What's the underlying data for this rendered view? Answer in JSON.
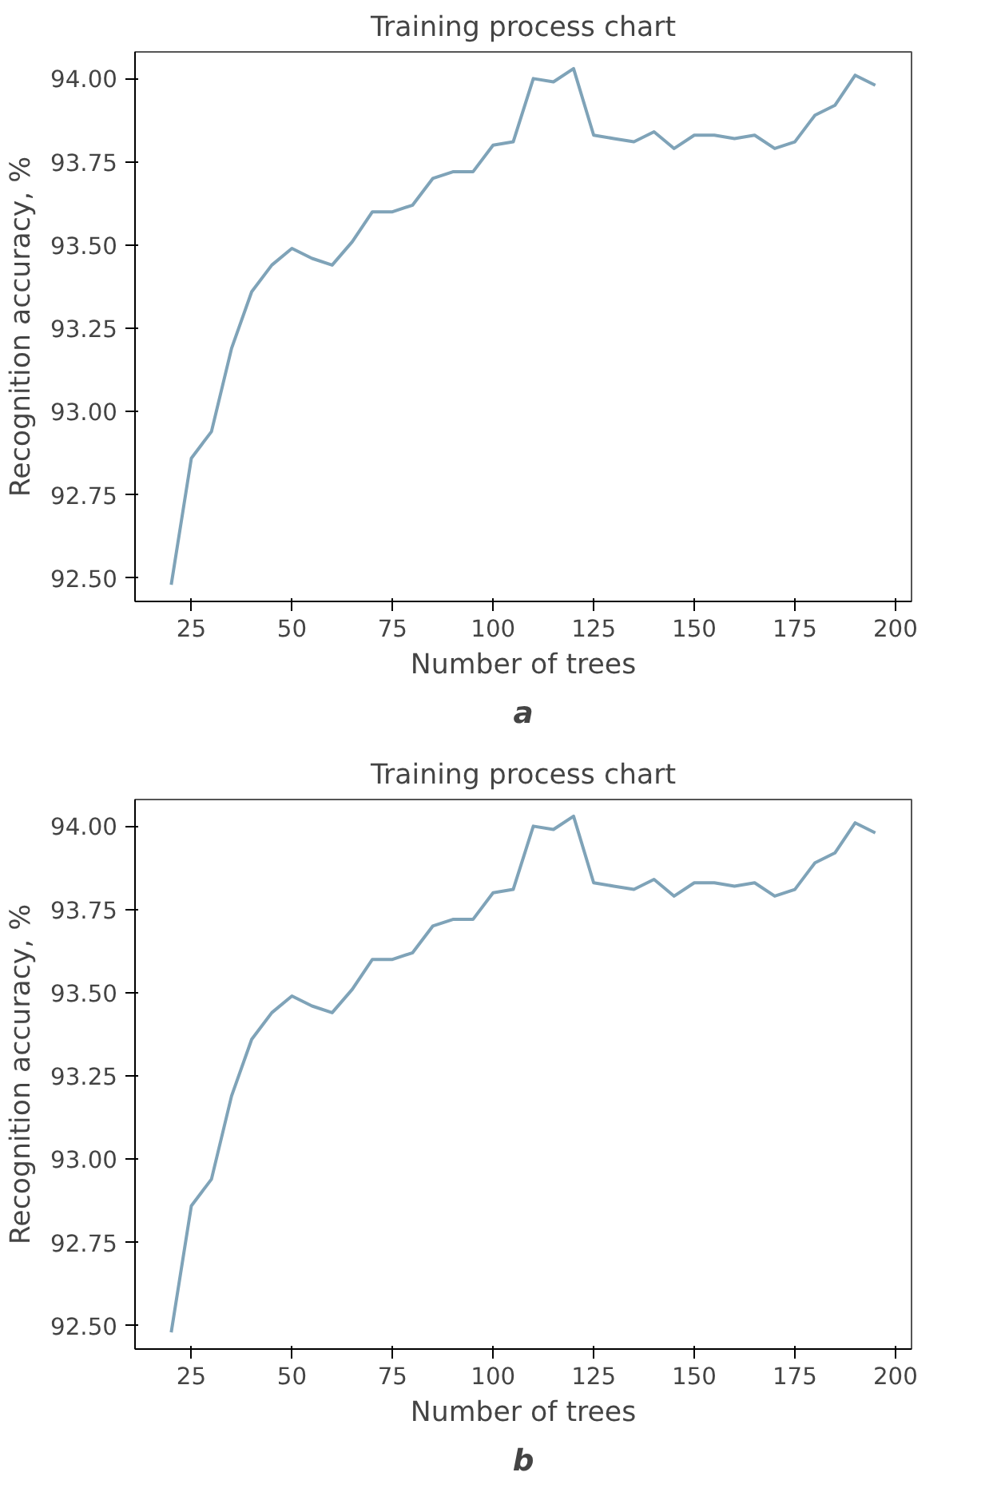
{
  "chart_data": [
    {
      "type": "line",
      "title": "Training process chart",
      "xlabel": "Number of trees",
      "ylabel": "Recognition accuracy, %",
      "annotations": [
        "a"
      ],
      "x": [
        20,
        25,
        30,
        35,
        40,
        45,
        50,
        55,
        60,
        65,
        70,
        75,
        80,
        85,
        90,
        95,
        100,
        105,
        110,
        115,
        120,
        125,
        130,
        135,
        140,
        145,
        150,
        155,
        160,
        165,
        170,
        175,
        180,
        185,
        190,
        195
      ],
      "series": [
        {
          "color": "#7fa3b8",
          "values": [
            92.48,
            92.86,
            92.94,
            93.19,
            93.36,
            93.44,
            93.49,
            93.46,
            93.44,
            93.51,
            93.6,
            93.6,
            93.62,
            93.7,
            93.72,
            93.72,
            93.8,
            93.81,
            94.0,
            93.99,
            94.03,
            93.83,
            93.82,
            93.81,
            93.84,
            93.79,
            93.83,
            93.83,
            93.82,
            93.83,
            93.79,
            93.81,
            93.89,
            93.92,
            94.01,
            93.98
          ]
        }
      ],
      "xlim": [
        11,
        204
      ],
      "ylim": [
        92.43,
        94.08
      ],
      "xticks": [
        25,
        50,
        75,
        100,
        125,
        150,
        175,
        200
      ],
      "yticks": [
        {
          "value": 92.5,
          "label": "92.50"
        },
        {
          "value": 92.75,
          "label": "92.75"
        },
        {
          "value": 93.0,
          "label": "93.00"
        },
        {
          "value": 93.25,
          "label": "93.25"
        },
        {
          "value": 93.5,
          "label": "93.50"
        },
        {
          "value": 93.75,
          "label": "93.75"
        },
        {
          "value": 94.0,
          "label": "94.00"
        }
      ],
      "grid": false
    },
    {
      "type": "line",
      "title": "Training process chart",
      "xlabel": "Number of trees",
      "ylabel": "Recognition accuracy, %",
      "annotations": [
        "b"
      ],
      "x": [
        20,
        25,
        30,
        35,
        40,
        45,
        50,
        55,
        60,
        65,
        70,
        75,
        80,
        85,
        90,
        95,
        100,
        105,
        110,
        115,
        120,
        125,
        130,
        135,
        140,
        145,
        150,
        155,
        160,
        165,
        170,
        175,
        180,
        185,
        190,
        195
      ],
      "series": [
        {
          "color": "#7fa3b8",
          "values": [
            92.48,
            92.86,
            92.94,
            93.19,
            93.36,
            93.44,
            93.49,
            93.46,
            93.44,
            93.51,
            93.6,
            93.6,
            93.62,
            93.7,
            93.72,
            93.72,
            93.8,
            93.81,
            94.0,
            93.99,
            94.03,
            93.83,
            93.82,
            93.81,
            93.84,
            93.79,
            93.83,
            93.83,
            93.82,
            93.83,
            93.79,
            93.81,
            93.89,
            93.92,
            94.01,
            93.98
          ]
        }
      ],
      "xlim": [
        11,
        204
      ],
      "ylim": [
        92.43,
        94.08
      ],
      "xticks": [
        25,
        50,
        75,
        100,
        125,
        150,
        175,
        200
      ],
      "yticks": [
        {
          "value": 92.5,
          "label": "92.50"
        },
        {
          "value": 92.75,
          "label": "92.75"
        },
        {
          "value": 93.0,
          "label": "93.00"
        },
        {
          "value": 93.25,
          "label": "93.25"
        },
        {
          "value": 93.5,
          "label": "93.50"
        },
        {
          "value": 93.75,
          "label": "93.75"
        },
        {
          "value": 94.0,
          "label": "94.00"
        }
      ],
      "grid": false
    }
  ]
}
